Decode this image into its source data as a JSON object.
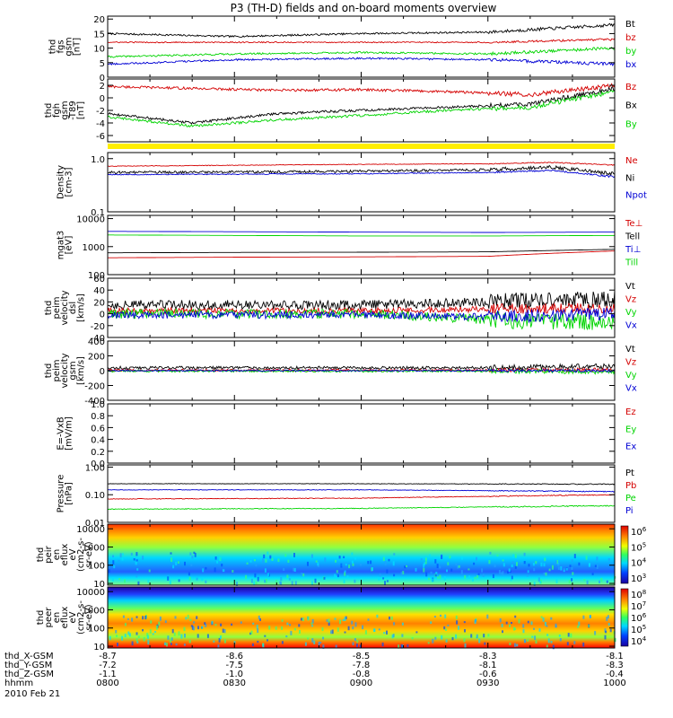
{
  "title": "P3 (TH-D) fields and on-board moments overview",
  "date_label": "2010 Feb 21",
  "colors": {
    "black": "#000000",
    "red": "#d40000",
    "green": "#00d400",
    "blue": "#0000d4",
    "yellow": "#ffee00"
  },
  "chart_data": [
    {
      "id": "fgs",
      "type": "line",
      "ylabel_lines": [
        "thd",
        "fgs",
        "gsm",
        "[nT]"
      ],
      "ylim": [
        0,
        21
      ],
      "yticks": [
        {
          "v": 20,
          "label": "20"
        },
        {
          "v": 15,
          "label": "15"
        },
        {
          "v": 10,
          "label": "10"
        },
        {
          "v": 5,
          "label": "5"
        },
        {
          "v": 0,
          "label": "0"
        }
      ],
      "x": [
        480,
        510,
        540,
        570,
        600
      ],
      "series": [
        {
          "name": "Bt",
          "color": "#000000",
          "values": [
            15,
            14,
            15,
            15.5,
            18
          ],
          "noise": 0.3
        },
        {
          "name": "bz",
          "color": "#d40000",
          "values": [
            12,
            12,
            12,
            12,
            13
          ],
          "noise": 0.2
        },
        {
          "name": "by",
          "color": "#00d400",
          "values": [
            7,
            8,
            8.5,
            8,
            10
          ],
          "noise": 0.3
        },
        {
          "name": "bx",
          "color": "#0000d4",
          "values": [
            4.5,
            6,
            6.5,
            6,
            4.5
          ],
          "noise": 0.3
        }
      ]
    },
    {
      "id": "fgh",
      "type": "line",
      "ylabel_lines": [
        "thd",
        "fgh",
        "gsm",
        "-T89",
        "[nT]"
      ],
      "ylim": [
        -7,
        3
      ],
      "yticks": [
        {
          "v": 2,
          "label": "2"
        },
        {
          "v": 0,
          "label": "0"
        },
        {
          "v": -2,
          "label": "-2"
        },
        {
          "v": -4,
          "label": "-4"
        },
        {
          "v": -6,
          "label": "-6"
        }
      ],
      "x": [
        480,
        500,
        520,
        540,
        560,
        580,
        600
      ],
      "series": [
        {
          "name": "Bz",
          "color": "#d40000",
          "values": [
            1.8,
            1.5,
            1.2,
            1.3,
            1.0,
            0.5,
            2.0
          ],
          "noise": 0.2
        },
        {
          "name": "Bx",
          "color": "#000000",
          "values": [
            -2.5,
            -4.0,
            -2.5,
            -2.0,
            -1.5,
            -1.0,
            1.5
          ],
          "noise": 0.2
        },
        {
          "name": "By",
          "color": "#00d400",
          "values": [
            -3.0,
            -4.5,
            -3.5,
            -2.8,
            -2.0,
            -1.5,
            1.0
          ],
          "noise": 0.2
        }
      ]
    },
    {
      "id": "density",
      "type": "line",
      "scale": "log",
      "ylabel_lines": [
        "Density",
        "[cm-3]"
      ],
      "ylim": [
        0.1,
        1.3
      ],
      "yticks": [
        {
          "v": 1.0,
          "label": "1.0"
        },
        {
          "v": 0.1,
          "label": "0.1"
        }
      ],
      "x": [
        480,
        510,
        540,
        570,
        585,
        600
      ],
      "series": [
        {
          "name": "Ne",
          "color": "#d40000",
          "values": [
            0.72,
            0.75,
            0.78,
            0.8,
            0.85,
            0.75
          ],
          "noise": 0.01
        },
        {
          "name": "Ni",
          "color": "#000000",
          "values": [
            0.55,
            0.56,
            0.58,
            0.62,
            0.7,
            0.5
          ],
          "noise": 0.03
        },
        {
          "name": "Npot",
          "color": "#0000d4",
          "values": [
            0.5,
            0.51,
            0.52,
            0.55,
            0.6,
            0.45
          ],
          "noise": 0.01
        }
      ]
    },
    {
      "id": "temperature",
      "type": "line",
      "scale": "log",
      "ylabel_lines": [
        "mgat3",
        "[eV]"
      ],
      "ylim": [
        100,
        13000
      ],
      "yticks": [
        {
          "v": 10000,
          "label": "10000"
        },
        {
          "v": 1000,
          "label": "1000"
        },
        {
          "v": 100,
          "label": "100"
        }
      ],
      "x": [
        480,
        510,
        540,
        570,
        600
      ],
      "series": [
        {
          "name": "Te⊥",
          "color": "#d40000",
          "values": [
            400,
            420,
            430,
            450,
            700
          ],
          "noise": 0.02
        },
        {
          "name": "Tell",
          "color": "#000000",
          "values": [
            600,
            620,
            630,
            650,
            800
          ],
          "noise": 0.02
        },
        {
          "name": "Ti⊥",
          "color": "#0000d4",
          "values": [
            3500,
            3400,
            3300,
            3200,
            3300
          ],
          "noise": 0.02
        },
        {
          "name": "Till",
          "color": "#00d400",
          "values": [
            2600,
            2500,
            2400,
            2400,
            2500
          ],
          "noise": 0.02
        }
      ]
    },
    {
      "id": "peim-velocity-dsl",
      "type": "line",
      "ylabel_lines": [
        "thd",
        "peim",
        "velocity",
        "dsl",
        "[km/s]"
      ],
      "ylim": [
        -40,
        60
      ],
      "yticks": [
        {
          "v": 60,
          "label": "60"
        },
        {
          "v": 40,
          "label": "40"
        },
        {
          "v": 20,
          "label": "20"
        },
        {
          "v": 0,
          "label": "0"
        },
        {
          "v": -20,
          "label": "-20"
        },
        {
          "v": -40,
          "label": "-40"
        }
      ],
      "x": [
        480,
        540,
        570,
        600
      ],
      "series": [
        {
          "name": "Vt",
          "color": "#000000",
          "values": [
            15,
            15,
            20,
            25
          ],
          "noise": 8
        },
        {
          "name": "Vz",
          "color": "#d40000",
          "values": [
            5,
            5,
            8,
            10
          ],
          "noise": 5
        },
        {
          "name": "Vy",
          "color": "#00d400",
          "values": [
            0,
            0,
            -10,
            -15
          ],
          "noise": 8
        },
        {
          "name": "Vx",
          "color": "#0000d4",
          "values": [
            -2,
            -2,
            -5,
            0
          ],
          "noise": 6
        }
      ]
    },
    {
      "id": "peim-velocity-gsm",
      "type": "line",
      "ylabel_lines": [
        "thd",
        "peim",
        "velocity",
        "gsm",
        "[km/s]"
      ],
      "ylim": [
        -400,
        400
      ],
      "yticks": [
        {
          "v": 400,
          "label": "400"
        },
        {
          "v": 200,
          "label": "200"
        },
        {
          "v": 0,
          "label": "0"
        },
        {
          "v": -200,
          "label": "-200"
        },
        {
          "v": -400,
          "label": "-400"
        }
      ],
      "x": [
        480,
        570,
        600
      ],
      "series": [
        {
          "name": "Vt",
          "color": "#000000",
          "values": [
            40,
            40,
            60
          ],
          "noise": 20
        },
        {
          "name": "Vz",
          "color": "#d40000",
          "values": [
            5,
            5,
            10
          ],
          "noise": 15
        },
        {
          "name": "Vy",
          "color": "#00d400",
          "values": [
            -5,
            -5,
            -20
          ],
          "noise": 15
        },
        {
          "name": "Vx",
          "color": "#0000d4",
          "values": [
            0,
            0,
            0
          ],
          "noise": 10
        }
      ]
    },
    {
      "id": "efield",
      "type": "line",
      "ylabel_lines": [
        "E=-VxB",
        "[mV/m]"
      ],
      "ylim": [
        0,
        1
      ],
      "yticks": [
        {
          "v": 1.0,
          "label": "1.0"
        },
        {
          "v": 0.8,
          "label": "0.8"
        },
        {
          "v": 0.6,
          "label": "0.6"
        },
        {
          "v": 0.4,
          "label": "0.4"
        },
        {
          "v": 0.2,
          "label": "0.2"
        },
        {
          "v": 0.0,
          "label": "0.0"
        }
      ],
      "x": [],
      "series": [
        {
          "name": "Ez",
          "color": "#d40000",
          "values": []
        },
        {
          "name": "Ey",
          "color": "#00d400",
          "values": []
        },
        {
          "name": "Ex",
          "color": "#0000d4",
          "values": []
        }
      ]
    },
    {
      "id": "pressure",
      "type": "line",
      "scale": "log",
      "ylabel_lines": [
        "Pressure",
        "[nPa]"
      ],
      "ylim": [
        0.01,
        1.2
      ],
      "yticks": [
        {
          "v": 1.0,
          "label": "1.00"
        },
        {
          "v": 0.1,
          "label": "0.10"
        },
        {
          "v": 0.01,
          "label": "0.01"
        }
      ],
      "x": [
        480,
        540,
        600
      ],
      "series": [
        {
          "name": "Pt",
          "color": "#000000",
          "values": [
            0.25,
            0.25,
            0.24
          ],
          "noise": 0.005
        },
        {
          "name": "Pb",
          "color": "#d40000",
          "values": [
            0.07,
            0.075,
            0.1
          ],
          "noise": 0.002
        },
        {
          "name": "Pe",
          "color": "#00d400",
          "values": [
            0.03,
            0.032,
            0.04
          ],
          "noise": 0.001
        },
        {
          "name": "Pi",
          "color": "#0000d4",
          "values": [
            0.15,
            0.15,
            0.13
          ],
          "noise": 0.003
        }
      ]
    },
    {
      "id": "peir-spectrogram",
      "type": "heatmap",
      "ylabel_lines": [
        "thd",
        "peir",
        "en",
        "eflux",
        "eV",
        "(cm2-s-",
        "sr-eV)"
      ],
      "yticks": [
        {
          "v": 10000,
          "label": "10000"
        },
        {
          "v": 1000,
          "label": "1000"
        },
        {
          "v": 100,
          "label": "100"
        },
        {
          "v": 10,
          "label": "10"
        }
      ],
      "colorbar_ticks": [
        {
          "exp": 6
        },
        {
          "exp": 5
        },
        {
          "exp": 4
        },
        {
          "exp": 3
        }
      ]
    },
    {
      "id": "peer-spectrogram",
      "type": "heatmap",
      "ylabel_lines": [
        "thd",
        "peer",
        "en",
        "eflux",
        "eV",
        "(cm2-s-",
        "sr-eV)"
      ],
      "yticks": [
        {
          "v": 10000,
          "label": "10000"
        },
        {
          "v": 1000,
          "label": "1000"
        },
        {
          "v": 100,
          "label": "100"
        },
        {
          "v": 10,
          "label": "10"
        }
      ],
      "colorbar_ticks": [
        {
          "exp": 8
        },
        {
          "exp": 7
        },
        {
          "exp": 6
        },
        {
          "exp": 5
        },
        {
          "exp": 4
        }
      ]
    }
  ],
  "x_axis": {
    "rows": [
      {
        "name": "thd_X-GSM",
        "values": [
          "-8.7",
          "-8.6",
          "-8.5",
          "-8.3",
          "-8.1"
        ]
      },
      {
        "name": "thd_Y-GSM",
        "values": [
          "-7.2",
          "-7.5",
          "-7.8",
          "-8.1",
          "-8.3"
        ]
      },
      {
        "name": "thd_Z-GSM",
        "values": [
          "-1.1",
          "-1.0",
          "-0.8",
          "-0.6",
          "-0.4"
        ]
      },
      {
        "name": "hhmm",
        "values": [
          "0800",
          "0830",
          "0900",
          "0930",
          "1000"
        ]
      }
    ]
  }
}
